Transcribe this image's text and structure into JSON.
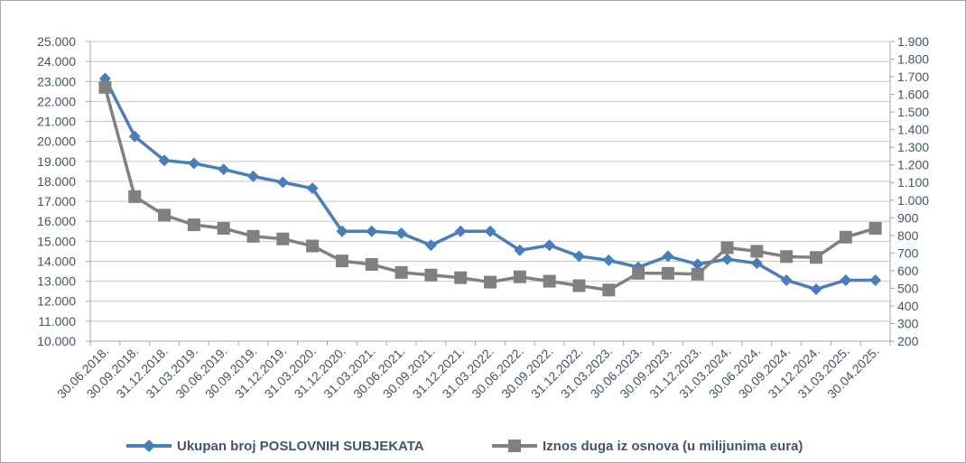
{
  "chart_data": {
    "type": "line",
    "title": "",
    "categories": [
      "30.06.2018.",
      "30.09.2018.",
      "31.12.2018.",
      "31.03.2019.",
      "30.06.2019.",
      "30.09.2019.",
      "31.12.2019.",
      "31.03.2020.",
      "31.12.2020.",
      "31.03.2021.",
      "30.06.2021.",
      "30.09.2021.",
      "31.12.2021.",
      "31.03.2022.",
      "30.06.2022.",
      "30.09.2022.",
      "31.12.2022.",
      "31.03.2023.",
      "30.06.2023.",
      "30.09.2023.",
      "31.12.2023.",
      "31.03.2024.",
      "30.06.2024.",
      "30.09.2024.",
      "31.12.2024.",
      "31.03.2025.",
      "30.04.2025."
    ],
    "series": [
      {
        "name": "Ukupan broj POSLOVNIH SUBJEKATA",
        "axis": "left",
        "color": "#4a7ebb",
        "marker": "diamond",
        "values": [
          23150,
          20250,
          19050,
          18900,
          18600,
          18250,
          17950,
          17650,
          15500,
          15500,
          15400,
          14800,
          15500,
          15500,
          14550,
          14800,
          14250,
          14050,
          13700,
          14250,
          13850,
          14100,
          13900,
          13050,
          12600,
          13050,
          13050
        ]
      },
      {
        "name": "Iznos duga iz osnova (u milijunima eura)",
        "axis": "right",
        "color": "#808080",
        "marker": "square",
        "values": [
          1640,
          1020,
          915,
          860,
          840,
          795,
          780,
          740,
          655,
          635,
          590,
          575,
          560,
          535,
          565,
          540,
          515,
          490,
          585,
          585,
          580,
          730,
          710,
          680,
          675,
          790,
          840
        ]
      }
    ],
    "y_left": {
      "range": [
        10000,
        25000
      ],
      "ticks": [
        "10.000",
        "11.000",
        "12.000",
        "13.000",
        "14.000",
        "15.000",
        "16.000",
        "17.000",
        "18.000",
        "19.000",
        "20.000",
        "21.000",
        "22.000",
        "23.000",
        "24.000",
        "25.000"
      ]
    },
    "y_right": {
      "range": [
        200,
        1900
      ],
      "ticks": [
        "200",
        "300",
        "400",
        "500",
        "600",
        "700",
        "800",
        "900",
        "1.000",
        "1.100",
        "1.200",
        "1.300",
        "1.400",
        "1.500",
        "1.600",
        "1.700",
        "1.800",
        "1.900"
      ]
    },
    "grid": true,
    "legend_position": "bottom",
    "xlabel": "",
    "ylabel": ""
  }
}
